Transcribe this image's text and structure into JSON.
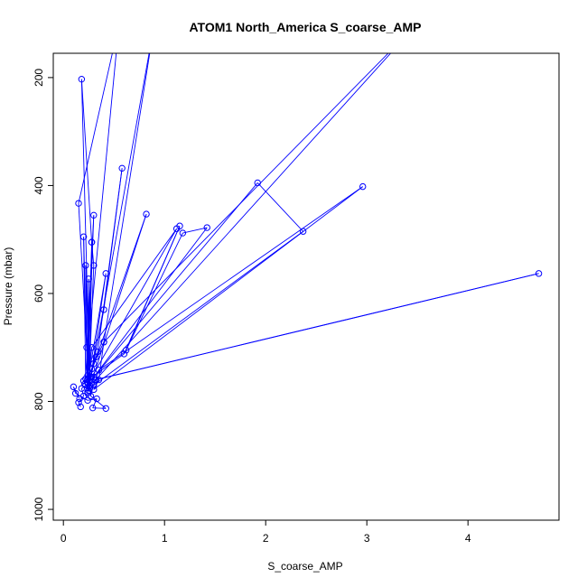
{
  "chart_data": {
    "type": "line",
    "title": "ATOM1 North_America S_coarse_AMP",
    "xlabel": "S_coarse_AMP",
    "ylabel": "Pressure (mbar)",
    "xlim": [
      -0.1,
      4.9
    ],
    "ylim": [
      1020,
      155
    ],
    "y_reversed": true,
    "grid": false,
    "legend": "none",
    "x_ticks": [
      0,
      1,
      2,
      3,
      4
    ],
    "y_ticks": [
      200,
      400,
      600,
      800,
      1000
    ],
    "series_color": "#0000ff",
    "series": [
      {
        "points": [
          [
            0.17,
            810
          ],
          [
            0.15,
            802
          ],
          [
            0.2,
            790
          ],
          [
            0.18,
            776
          ],
          [
            0.22,
            770
          ],
          [
            0.2,
            762
          ],
          [
            0.24,
            752
          ],
          [
            0.28,
            740
          ],
          [
            0.3,
            730
          ],
          [
            0.32,
            718
          ],
          [
            0.34,
            708
          ],
          [
            0.58,
            368
          ],
          [
            0.4,
            630
          ],
          [
            0.25,
            772
          ],
          [
            0.23,
            700
          ],
          [
            0.15,
            433
          ],
          [
            0.55,
            100
          ],
          [
            0.21,
            768
          ],
          [
            0.4,
            690
          ],
          [
            0.9,
            100
          ],
          [
            0.26,
            770
          ],
          [
            0.18,
            203
          ],
          [
            0.28,
            505
          ],
          [
            0.24,
            760
          ],
          [
            0.3,
            455
          ],
          [
            0.22,
            758
          ],
          [
            0.2,
            495
          ],
          [
            0.24,
            782
          ],
          [
            0.22,
            548
          ],
          [
            0.26,
            775
          ],
          [
            0.28,
            505
          ],
          [
            0.3,
            548
          ],
          [
            0.25,
            780
          ],
          [
            0.82,
            453
          ],
          [
            0.24,
            765
          ],
          [
            0.42,
            563
          ],
          [
            0.26,
            770
          ],
          [
            0.25,
            573
          ],
          [
            0.24,
            785
          ],
          [
            0.28,
            700
          ],
          [
            1.12,
            480
          ],
          [
            0.28,
            755
          ],
          [
            0.6,
            712
          ],
          [
            1.15,
            475
          ],
          [
            0.62,
            705
          ],
          [
            1.18,
            488
          ],
          [
            1.42,
            478
          ],
          [
            0.3,
            755
          ],
          [
            1.92,
            395
          ],
          [
            2.37,
            485
          ],
          [
            0.3,
            770
          ],
          [
            0.35,
            742
          ],
          [
            2.96,
            402
          ],
          [
            0.3,
            778
          ],
          [
            0.35,
            760
          ],
          [
            0.4,
            690
          ],
          [
            3.5,
            100
          ],
          [
            0.32,
            760
          ],
          [
            4.7,
            563
          ],
          [
            0.31,
            760
          ],
          [
            0.27,
            790
          ],
          [
            0.42,
            813
          ],
          [
            0.29,
            812
          ],
          [
            0.33,
            795
          ],
          [
            0.24,
            798
          ],
          [
            0.12,
            785
          ],
          [
            0.1,
            773
          ],
          [
            0.16,
            795
          ]
        ]
      }
    ]
  }
}
